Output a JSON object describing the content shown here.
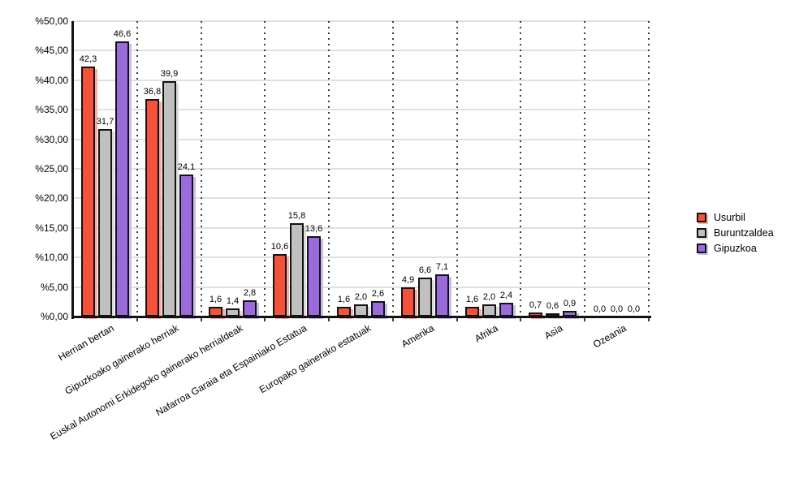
{
  "chart_data": {
    "type": "bar",
    "title": "",
    "xlabel": "",
    "ylabel": "",
    "ylim": [
      0,
      50
    ],
    "y_tick_step": 5,
    "y_tick_labels": [
      "%0,00",
      "%5,00",
      "%10,00",
      "%15,00",
      "%20,00",
      "%25,00",
      "%30,00",
      "%35,00",
      "%40,00",
      "%45,00",
      "%50,00"
    ],
    "grid": true,
    "legend_position": "right",
    "value_label_decimal_separator": ",",
    "categories": [
      "Herrian bertan",
      "Gipuzkoako gainerako herriak",
      "Euskal Autonomi Erkidegoko gainerako herrialdeak",
      "Nafarroa Garaia eta Espainiako Estatua",
      "Europako gainerako estatuak",
      "Amerika",
      "Afrika",
      "Asia",
      "Ozeania"
    ],
    "series": [
      {
        "name": "Usurbil",
        "color": "#F4533B",
        "shadow_color": "#F9ACA0",
        "values": [
          42.3,
          36.8,
          1.6,
          10.6,
          1.6,
          4.9,
          1.6,
          0.7,
          0.0
        ]
      },
      {
        "name": "Buruntzaldea",
        "color": "#C0C0C0",
        "shadow_color": "#DBDBDB",
        "values": [
          31.7,
          39.9,
          1.4,
          15.8,
          2.0,
          6.6,
          2.0,
          0.6,
          0.0
        ]
      },
      {
        "name": "Gipuzkoa",
        "color": "#9A6CDB",
        "shadow_color": "#CDBAEF",
        "values": [
          46.6,
          24.1,
          2.8,
          13.6,
          2.6,
          7.1,
          2.4,
          0.9,
          0.0
        ]
      }
    ],
    "colors": {
      "axis": "#121212",
      "gridline": "#e0e0e0",
      "separator": "#3c3c3c",
      "background": "#ffffff"
    }
  }
}
